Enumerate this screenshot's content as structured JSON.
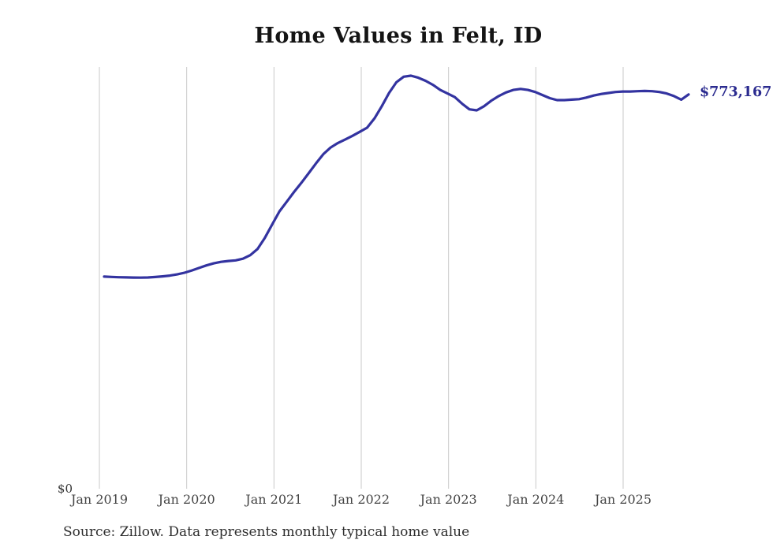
{
  "header": {
    "title": "Home Values in Felt, ID"
  },
  "chart_data": {
    "type": "line",
    "title": "Home Values in Felt, ID",
    "series_name": "Monthly typical home value",
    "frequency": "monthly",
    "start_month": "2019-01",
    "end_month": "2025-09",
    "x_tick_labels": [
      "Jan 2019",
      "Jan 2020",
      "Jan 2021",
      "Jan 2022",
      "Jan 2023",
      "Jan 2024",
      "Jan 2025"
    ],
    "y_zero_label": "$0",
    "ylim": [
      0,
      827000
    ],
    "grid": "vertical-year-gridlines",
    "legend": "none",
    "end_label": "$773,167",
    "end_value": 773167,
    "line_color": "#3333a0",
    "end_label_color": "#2b2b8f",
    "grid_color": "#c9c9c9",
    "values": [
      416000,
      415400,
      414800,
      414400,
      414100,
      414000,
      414300,
      415200,
      416400,
      418000,
      420300,
      423600,
      428000,
      433000,
      438000,
      442000,
      444900,
      446600,
      447800,
      451000,
      458000,
      470000,
      492000,
      518000,
      544000,
      563000,
      582000,
      600000,
      619000,
      638000,
      656000,
      669000,
      678000,
      685000,
      692000,
      700000,
      708000,
      726000,
      750000,
      776000,
      797000,
      808000,
      810000,
      806000,
      800000,
      792000,
      782000,
      775000,
      768000,
      755000,
      744000,
      742000,
      750000,
      761000,
      770000,
      777000,
      782000,
      784000,
      782000,
      778000,
      772000,
      766000,
      762000,
      762000,
      763000,
      764000,
      767000,
      771000,
      774000,
      776000,
      778000,
      779000,
      779000,
      779500,
      780000,
      779500,
      778000,
      775000,
      770000,
      763000,
      773167
    ]
  },
  "footer": {
    "source": "Source: Zillow. Data represents monthly typical home value"
  }
}
